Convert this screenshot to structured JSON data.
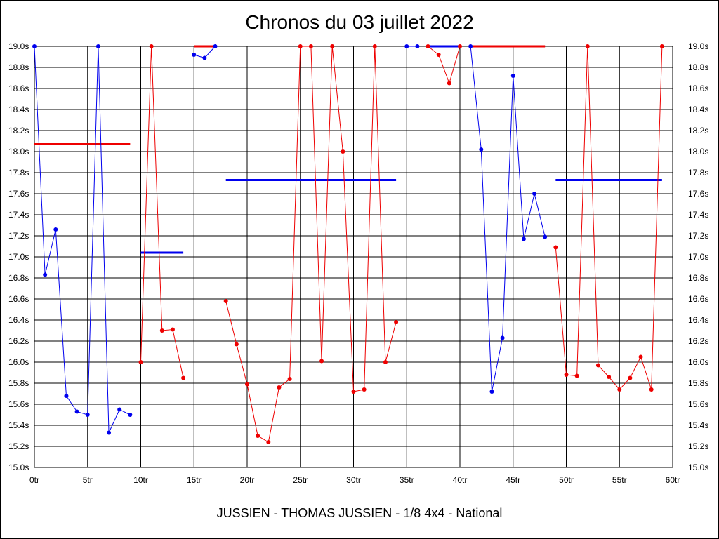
{
  "title": "Chronos du 03 juillet 2022",
  "subtitle": "JUSSIEN - THOMAS JUSSIEN - 1/8 4x4 - National",
  "chart_data": {
    "type": "line",
    "title": "Chronos du 03 juillet 2022",
    "xlabel": "",
    "ylabel": "",
    "xlim": [
      0,
      60
    ],
    "ylim": [
      15.0,
      19.0
    ],
    "grid": true,
    "x_ticks": [
      0,
      5,
      10,
      15,
      20,
      25,
      30,
      35,
      40,
      45,
      50,
      55,
      60
    ],
    "x_tick_labels": [
      "0tr",
      "5tr",
      "10tr",
      "15tr",
      "20tr",
      "25tr",
      "30tr",
      "35tr",
      "40tr",
      "45tr",
      "50tr",
      "55tr",
      "60tr"
    ],
    "y_ticks": [
      15.0,
      15.2,
      15.4,
      15.6,
      15.8,
      16.0,
      16.2,
      16.4,
      16.6,
      16.8,
      17.0,
      17.2,
      17.4,
      17.6,
      17.8,
      18.0,
      18.2,
      18.4,
      18.6,
      18.8,
      19.0
    ],
    "y_tick_labels": [
      "15.0s",
      "15.2s",
      "15.4s",
      "15.6s",
      "15.8s",
      "16.0s",
      "16.2s",
      "16.4s",
      "16.6s",
      "16.8s",
      "17.0s",
      "17.2s",
      "17.4s",
      "17.6s",
      "17.8s",
      "18.0s",
      "18.2s",
      "18.4s",
      "18.6s",
      "18.8s",
      "19.0s"
    ],
    "colors": {
      "blue": "#0000ee",
      "red": "#ee0000"
    },
    "series": [
      {
        "color": "blue",
        "x": [
          0,
          1,
          2,
          3,
          4,
          5,
          6,
          7,
          8,
          9
        ],
        "y": [
          19.0,
          16.83,
          17.26,
          15.68,
          15.53,
          15.5,
          19.0,
          15.33,
          15.55,
          15.5
        ]
      },
      {
        "color": "red",
        "x": [
          10,
          11,
          12,
          13,
          14
        ],
        "y": [
          16.0,
          19.0,
          16.3,
          16.31,
          15.85
        ]
      },
      {
        "color": "blue",
        "x": [
          15,
          16,
          17
        ],
        "y": [
          18.92,
          18.89,
          19.0
        ]
      },
      {
        "color": "red",
        "x": [
          18,
          19,
          20,
          21,
          22,
          23,
          24,
          25,
          26,
          27,
          28,
          29,
          30,
          31,
          32,
          33,
          34
        ],
        "y": [
          16.58,
          16.17,
          15.79,
          15.3,
          15.24,
          15.76,
          15.84,
          19.0,
          19.0,
          16.01,
          19.0,
          18.0,
          15.72,
          15.74,
          19.0,
          16.0,
          16.38
        ]
      },
      {
        "color": "blue",
        "x": [
          35,
          36
        ],
        "y": [
          19.0,
          19.0
        ]
      },
      {
        "color": "red",
        "x": [
          37,
          38,
          39,
          40
        ],
        "y": [
          19.0,
          18.92,
          18.65,
          19.0
        ]
      },
      {
        "color": "blue",
        "x": [
          41,
          42,
          43,
          44,
          45,
          46,
          47,
          48
        ],
        "y": [
          19.0,
          18.02,
          15.72,
          16.23,
          18.72,
          17.17,
          17.6,
          17.19
        ]
      },
      {
        "color": "red",
        "x": [
          49,
          50,
          51,
          52,
          53,
          54,
          55,
          56,
          57,
          58,
          59
        ],
        "y": [
          17.09,
          15.88,
          15.87,
          19.0,
          15.97,
          15.86,
          15.74,
          15.85,
          16.05,
          15.74,
          19.0
        ]
      }
    ],
    "averages": [
      {
        "color": "red",
        "x": [
          0,
          9
        ],
        "y": 18.07
      },
      {
        "color": "blue",
        "x": [
          10,
          14
        ],
        "y": 17.04
      },
      {
        "color": "red",
        "x": [
          15,
          17
        ],
        "y": 19.0
      },
      {
        "color": "blue",
        "x": [
          18,
          34
        ],
        "y": 17.73
      },
      {
        "color": "blue",
        "x": [
          37,
          40
        ],
        "y": 19.0
      },
      {
        "color": "red",
        "x": [
          41,
          48
        ],
        "y": 19.0
      },
      {
        "color": "blue",
        "x": [
          49,
          59
        ],
        "y": 17.73
      }
    ]
  }
}
